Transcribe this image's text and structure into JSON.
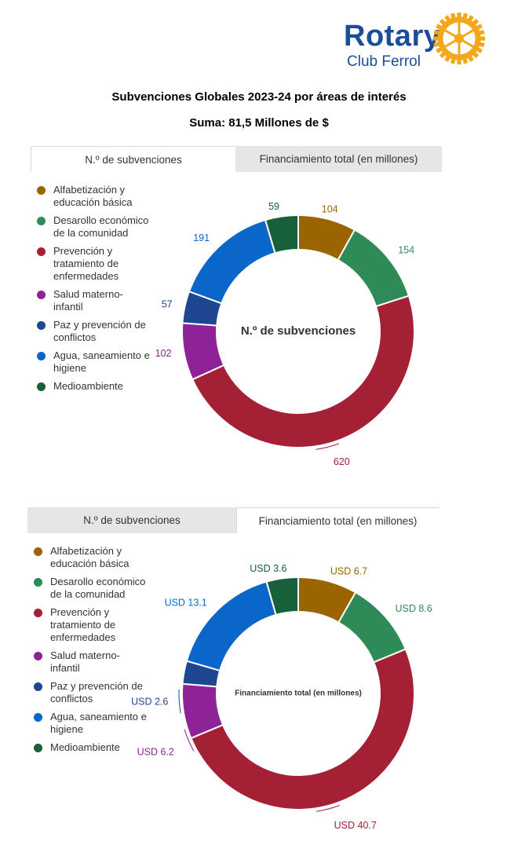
{
  "logo": {
    "word": "Rotary",
    "club": "Club Ferrol"
  },
  "heading": {
    "title": "Subvenciones Globales 2023-24 por áreas de interés",
    "subtitle": "Suma: 81,5 Millones de $"
  },
  "colors": {
    "Alfabetización y educación básica": "#9a6500",
    "Desarollo económico de la comunidad": "#2e8b57",
    "Prevención y tratamiento de enfermedades": "#a32035",
    "Salud materno-infantil": "#8e2398",
    "Paz y prevención de conflictos": "#1f4690",
    "Agua, saneamiento e higiene": "#0a67c9",
    "Medioambiente": "#17603a"
  },
  "panels": [
    {
      "tabs": [
        {
          "label": "N.º de subvenciones",
          "active": true
        },
        {
          "label": "Financiamiento total (en millones)",
          "active": false
        }
      ],
      "legend": [
        "Alfabetización y educación básica",
        "Desarollo económico de la comunidad",
        "Prevención y tratamiento de enfermedades",
        "Salud materno-infantil",
        "Paz y prevención de conflictos",
        "Agua, saneamiento e higiene",
        "Medioambiente"
      ]
    },
    {
      "tabs": [
        {
          "label": "N.º de subvenciones",
          "active": false
        },
        {
          "label": "Financiamiento total (en millones)",
          "active": true
        }
      ],
      "legend": [
        "Alfabetización y educación básica",
        "Desarollo económico de la comunidad",
        "Prevención y tratamiento de enfermedades",
        "Salud materno-infantil",
        "Paz y prevención de conflictos",
        "Agua, saneamiento e higiene",
        "Medioambiente"
      ]
    }
  ],
  "chart_data": [
    {
      "type": "pie",
      "variant": "donut",
      "title": "N.º de subvenciones",
      "categories": [
        "Alfabetización y educación básica",
        "Desarollo económico de la comunidad",
        "Prevención y tratamiento de enfermedades",
        "Salud materno-infantil",
        "Paz y prevención de conflictos",
        "Agua, saneamiento e higiene",
        "Medioambiente"
      ],
      "values": [
        104,
        154,
        620,
        102,
        57,
        191,
        59
      ],
      "labels": [
        "104",
        "154",
        "620",
        "102",
        "57",
        "191",
        "59"
      ],
      "legend": "left"
    },
    {
      "type": "pie",
      "variant": "donut",
      "title": "Financiamiento total (en millones)",
      "categories": [
        "Alfabetización y educación básica",
        "Desarollo económico de la comunidad",
        "Prevención y tratamiento de enfermedades",
        "Salud materno-infantil",
        "Paz y prevención de conflictos",
        "Agua, saneamiento e higiene",
        "Medioambiente"
      ],
      "values": [
        6.7,
        8.6,
        40.7,
        6.2,
        2.6,
        13.1,
        3.6
      ],
      "labels": [
        "USD 6.7",
        "USD 8.6",
        "USD 40.7",
        "USD 6.2",
        "USD 2.6",
        "USD 13.1",
        "USD 3.6"
      ],
      "legend": "left"
    }
  ]
}
